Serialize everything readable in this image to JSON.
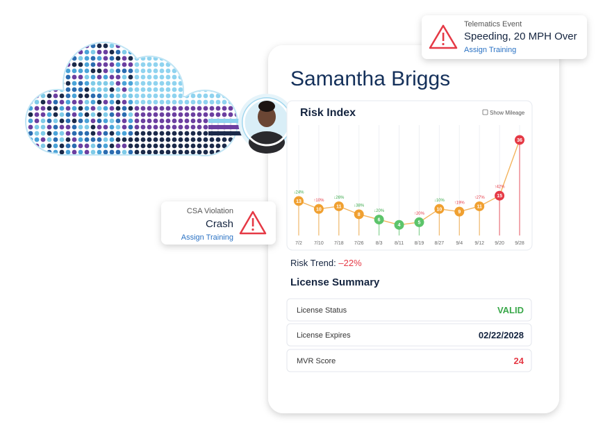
{
  "telematics": {
    "label": "Telematics Event",
    "event": "Speeding, 20 MPH Over",
    "action": "Assign Training"
  },
  "csa": {
    "label": "CSA Violation",
    "event": "Crash",
    "action": "Assign Training"
  },
  "profile": {
    "name": "Samantha Briggs"
  },
  "chart_data": {
    "type": "line",
    "title": "Risk Index",
    "toggle": "Show Mileage",
    "categories": [
      "7/2",
      "7/10",
      "7/18",
      "7/26",
      "8/3",
      "8/11",
      "8/19",
      "8/27",
      "9/4",
      "9/12",
      "9/20",
      "9/28"
    ],
    "values": [
      13,
      10,
      11,
      8,
      6,
      4,
      5,
      10,
      9,
      11,
      15,
      36
    ],
    "point_colors": [
      "#f0a030",
      "#f0a030",
      "#f0a030",
      "#f0a030",
      "#5cc46a",
      "#5cc46a",
      "#5cc46a",
      "#f0a030",
      "#f0a030",
      "#f0a030",
      "#e53945",
      "#e53945"
    ],
    "change_labels": [
      "↓24%",
      "↑10%",
      "↓26%",
      "↓38%",
      "↓20%",
      null,
      "↑20%",
      "↓10%",
      "↑19%",
      "↑27%",
      "↑42%",
      null
    ],
    "change_colors": [
      "#3aa84a",
      "#e53945",
      "#3aa84a",
      "#3aa84a",
      "#3aa84a",
      null,
      "#e53945",
      "#3aa84a",
      "#e53945",
      "#e53945",
      "#e53945",
      null
    ],
    "line_color": "#f3b35c"
  },
  "risk_trend": {
    "label": "Risk Trend:",
    "value": "–22%"
  },
  "license": {
    "title": "License Summary",
    "rows": [
      {
        "label": "License Status",
        "value": "VALID",
        "color": "#3aa84a"
      },
      {
        "label": "License Expires",
        "value": "02/22/2028",
        "color": "#14243f"
      },
      {
        "label": "MVR Score",
        "value": "24",
        "color": "#e53945"
      }
    ]
  }
}
